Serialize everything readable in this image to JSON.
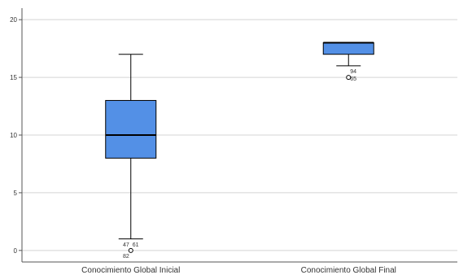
{
  "chart_data": {
    "type": "boxplot",
    "title": "",
    "xlabel": "",
    "ylabel": "",
    "ylim": [
      -1,
      21
    ],
    "yticks": [
      0,
      5,
      10,
      15,
      20
    ],
    "grid": "horizontal",
    "box_color": "#5390e6",
    "categories": [
      "Conocimiento Global Inicial",
      "Conocimiento Global Final"
    ],
    "boxes": [
      {
        "category": "Conocimiento Global Inicial",
        "whisker_low": 1,
        "q1": 8,
        "median": 10,
        "q3": 13,
        "whisker_high": 17,
        "outliers": [
          {
            "value": 0,
            "labels": [
              "47",
              "61",
              "82"
            ]
          }
        ]
      },
      {
        "category": "Conocimiento Global Final",
        "whisker_low": 16,
        "q1": 17,
        "median": 18,
        "q3": 18,
        "whisker_high": 18,
        "outliers": [
          {
            "value": 15,
            "labels": [
              "94",
              "65"
            ]
          }
        ]
      }
    ]
  }
}
